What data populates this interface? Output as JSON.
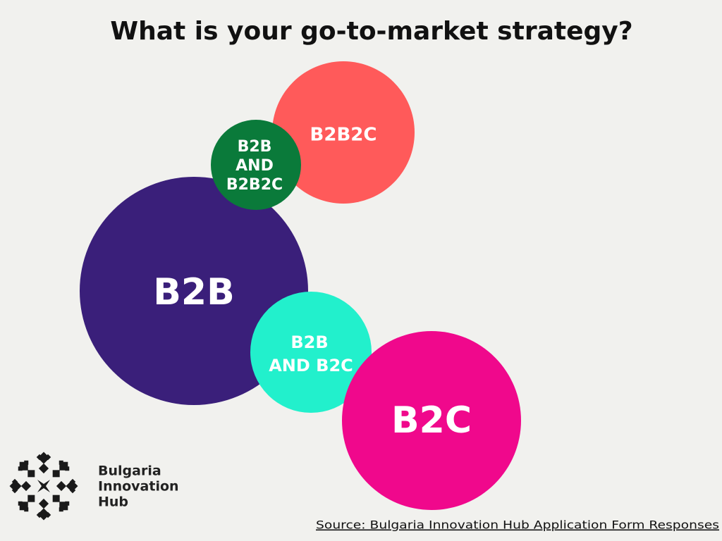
{
  "header": {
    "title": "What is your go-to-market strategy?"
  },
  "nodes": [
    {
      "lines": [
        "B2B2C"
      ]
    },
    {
      "lines": [
        "B2B",
        "AND",
        "B2B2C"
      ]
    },
    {
      "lines": [
        "B2B"
      ]
    },
    {
      "lines": [
        "B2B",
        "AND B2C"
      ]
    },
    {
      "lines": [
        "B2C"
      ]
    }
  ],
  "logo": {
    "lines": [
      "Bulgaria",
      "Innovation",
      "Hub"
    ]
  },
  "footer": {
    "source": "Source: Bulgaria Innovation Hub Application Form Responses"
  }
}
